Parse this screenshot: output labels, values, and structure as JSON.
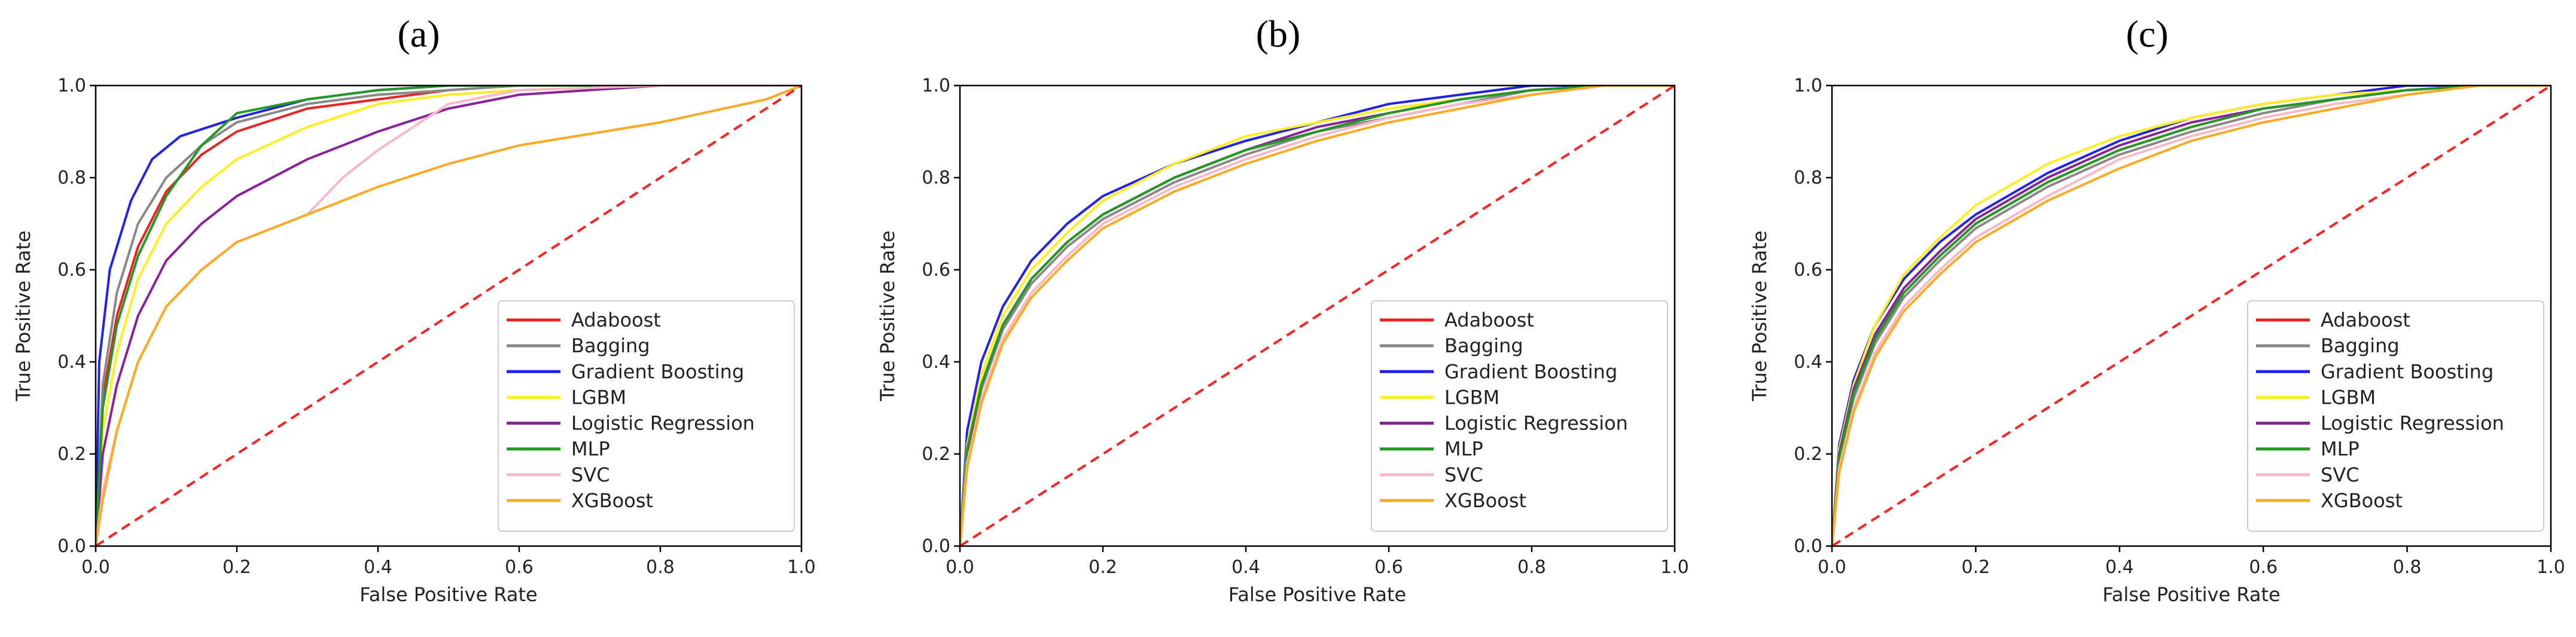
{
  "figure": {
    "panels": [
      "(a)",
      "(b)",
      "(c)"
    ]
  },
  "chart_data": [
    {
      "type": "line",
      "title": "(a)",
      "xlabel": "False Positive Rate",
      "ylabel": "True Positive Rate",
      "xlim": [
        0,
        1
      ],
      "ylim": [
        0,
        1
      ],
      "xticks": [
        "0.0",
        "0.2",
        "0.4",
        "0.6",
        "0.8",
        "1.0"
      ],
      "yticks": [
        "0.0",
        "0.2",
        "0.4",
        "0.6",
        "0.8",
        "1.0"
      ],
      "legend_position": "lower-right",
      "reference_line": {
        "name": "chance",
        "color": "#ff2222",
        "x": [
          0,
          1
        ],
        "y": [
          0,
          1
        ]
      },
      "series": [
        {
          "name": "Adaboost",
          "color": "#ee2222",
          "x": [
            0,
            0.01,
            0.03,
            0.06,
            0.1,
            0.15,
            0.2,
            0.3,
            0.4,
            0.5,
            0.6,
            0.8,
            1.0
          ],
          "y": [
            0,
            0.32,
            0.5,
            0.65,
            0.77,
            0.85,
            0.9,
            0.95,
            0.97,
            0.99,
            1.0,
            1.0,
            1.0
          ]
        },
        {
          "name": "Bagging",
          "color": "#888888",
          "x": [
            0,
            0.01,
            0.03,
            0.06,
            0.1,
            0.15,
            0.2,
            0.3,
            0.4,
            0.5,
            0.6,
            0.8,
            1.0
          ],
          "y": [
            0,
            0.35,
            0.55,
            0.7,
            0.8,
            0.87,
            0.92,
            0.96,
            0.98,
            0.99,
            1.0,
            1.0,
            1.0
          ]
        },
        {
          "name": "Gradient Boosting",
          "color": "#2222ee",
          "x": [
            0,
            0.005,
            0.02,
            0.05,
            0.08,
            0.12,
            0.2,
            0.3,
            0.4,
            0.5,
            0.6,
            0.8,
            1.0
          ],
          "y": [
            0,
            0.4,
            0.6,
            0.75,
            0.84,
            0.89,
            0.93,
            0.97,
            0.99,
            1.0,
            1.0,
            1.0,
            1.0
          ]
        },
        {
          "name": "LGBM",
          "color": "#ffee22",
          "x": [
            0,
            0.01,
            0.03,
            0.06,
            0.1,
            0.15,
            0.2,
            0.3,
            0.4,
            0.5,
            0.6,
            0.8,
            1.0
          ],
          "y": [
            0,
            0.25,
            0.42,
            0.58,
            0.7,
            0.78,
            0.84,
            0.91,
            0.96,
            0.98,
            0.99,
            1.0,
            1.0
          ]
        },
        {
          "name": "Logistic Regression",
          "color": "#882299",
          "x": [
            0,
            0.01,
            0.03,
            0.06,
            0.1,
            0.15,
            0.2,
            0.3,
            0.4,
            0.5,
            0.6,
            0.8,
            1.0
          ],
          "y": [
            0,
            0.2,
            0.35,
            0.5,
            0.62,
            0.7,
            0.76,
            0.84,
            0.9,
            0.95,
            0.98,
            1.0,
            1.0
          ]
        },
        {
          "name": "MLP",
          "color": "#229922",
          "x": [
            0,
            0.01,
            0.03,
            0.06,
            0.1,
            0.15,
            0.2,
            0.3,
            0.4,
            0.5,
            0.6,
            0.8,
            1.0
          ],
          "y": [
            0,
            0.3,
            0.48,
            0.63,
            0.76,
            0.87,
            0.94,
            0.97,
            0.99,
            1.0,
            1.0,
            1.0,
            1.0
          ]
        },
        {
          "name": "SVC",
          "color": "#f8b8c8",
          "x": [
            0,
            0.01,
            0.03,
            0.06,
            0.1,
            0.15,
            0.2,
            0.3,
            0.35,
            0.4,
            0.5,
            0.6,
            0.8,
            1.0
          ],
          "y": [
            0,
            0.12,
            0.25,
            0.4,
            0.52,
            0.6,
            0.66,
            0.72,
            0.8,
            0.86,
            0.96,
            0.99,
            1.0,
            1.0
          ]
        },
        {
          "name": "XGBoost",
          "color": "#ffaa22",
          "x": [
            0,
            0.01,
            0.03,
            0.06,
            0.1,
            0.15,
            0.2,
            0.3,
            0.4,
            0.5,
            0.6,
            0.8,
            0.95,
            1.0
          ],
          "y": [
            0,
            0.1,
            0.25,
            0.4,
            0.52,
            0.6,
            0.66,
            0.72,
            0.78,
            0.83,
            0.87,
            0.92,
            0.97,
            1.0
          ]
        }
      ]
    },
    {
      "type": "line",
      "title": "(b)",
      "xlabel": "False Positive Rate",
      "ylabel": "True Positive Rate",
      "xlim": [
        0,
        1
      ],
      "ylim": [
        0,
        1
      ],
      "xticks": [
        "0.0",
        "0.2",
        "0.4",
        "0.6",
        "0.8",
        "1.0"
      ],
      "yticks": [
        "0.0",
        "0.2",
        "0.4",
        "0.6",
        "0.8",
        "1.0"
      ],
      "legend_position": "lower-right",
      "reference_line": {
        "name": "chance",
        "color": "#ff2222",
        "x": [
          0,
          1
        ],
        "y": [
          0,
          1
        ]
      },
      "series": [
        {
          "name": "Adaboost",
          "color": "#ee2222",
          "x": [
            0,
            0.01,
            0.03,
            0.06,
            0.1,
            0.15,
            0.2,
            0.3,
            0.4,
            0.5,
            0.6,
            0.7,
            0.8,
            0.9,
            1.0
          ],
          "y": [
            0,
            0.22,
            0.35,
            0.48,
            0.58,
            0.66,
            0.72,
            0.8,
            0.86,
            0.9,
            0.94,
            0.97,
            0.99,
            1.0,
            1.0
          ]
        },
        {
          "name": "Bagging",
          "color": "#888888",
          "x": [
            0,
            0.01,
            0.03,
            0.06,
            0.1,
            0.15,
            0.2,
            0.3,
            0.4,
            0.5,
            0.6,
            0.7,
            0.8,
            0.9,
            1.0
          ],
          "y": [
            0,
            0.2,
            0.34,
            0.47,
            0.57,
            0.65,
            0.71,
            0.79,
            0.85,
            0.9,
            0.93,
            0.96,
            0.99,
            1.0,
            1.0
          ]
        },
        {
          "name": "Gradient Boosting",
          "color": "#2222ee",
          "x": [
            0,
            0.01,
            0.03,
            0.06,
            0.1,
            0.15,
            0.2,
            0.3,
            0.4,
            0.5,
            0.6,
            0.7,
            0.8,
            0.9,
            1.0
          ],
          "y": [
            0,
            0.25,
            0.4,
            0.52,
            0.62,
            0.7,
            0.76,
            0.83,
            0.88,
            0.92,
            0.96,
            0.98,
            1.0,
            1.0,
            1.0
          ]
        },
        {
          "name": "LGBM",
          "color": "#ffee22",
          "x": [
            0,
            0.01,
            0.03,
            0.06,
            0.1,
            0.15,
            0.2,
            0.3,
            0.4,
            0.5,
            0.6,
            0.7,
            0.8,
            0.9,
            1.0
          ],
          "y": [
            0,
            0.22,
            0.37,
            0.5,
            0.6,
            0.68,
            0.75,
            0.83,
            0.89,
            0.92,
            0.95,
            0.97,
            0.99,
            1.0,
            1.0
          ]
        },
        {
          "name": "Logistic Regression",
          "color": "#882299",
          "x": [
            0,
            0.01,
            0.03,
            0.06,
            0.1,
            0.15,
            0.2,
            0.3,
            0.4,
            0.5,
            0.6,
            0.7,
            0.8,
            0.9,
            1.0
          ],
          "y": [
            0,
            0.2,
            0.35,
            0.48,
            0.58,
            0.66,
            0.72,
            0.8,
            0.86,
            0.91,
            0.94,
            0.97,
            0.99,
            1.0,
            1.0
          ]
        },
        {
          "name": "MLP",
          "color": "#229922",
          "x": [
            0,
            0.01,
            0.03,
            0.06,
            0.1,
            0.15,
            0.2,
            0.3,
            0.4,
            0.5,
            0.6,
            0.7,
            0.8,
            0.9,
            1.0
          ],
          "y": [
            0,
            0.21,
            0.35,
            0.48,
            0.58,
            0.66,
            0.72,
            0.8,
            0.86,
            0.9,
            0.94,
            0.97,
            0.99,
            1.0,
            1.0
          ]
        },
        {
          "name": "SVC",
          "color": "#f8b8c8",
          "x": [
            0,
            0.01,
            0.03,
            0.06,
            0.1,
            0.15,
            0.2,
            0.3,
            0.4,
            0.5,
            0.6,
            0.7,
            0.8,
            0.9,
            1.0
          ],
          "y": [
            0,
            0.18,
            0.32,
            0.45,
            0.55,
            0.63,
            0.7,
            0.78,
            0.84,
            0.89,
            0.93,
            0.96,
            0.98,
            1.0,
            1.0
          ]
        },
        {
          "name": "XGBoost",
          "color": "#ffaa22",
          "x": [
            0,
            0.01,
            0.03,
            0.06,
            0.1,
            0.15,
            0.2,
            0.3,
            0.4,
            0.5,
            0.6,
            0.7,
            0.8,
            0.9,
            1.0
          ],
          "y": [
            0,
            0.17,
            0.31,
            0.44,
            0.54,
            0.62,
            0.69,
            0.77,
            0.83,
            0.88,
            0.92,
            0.95,
            0.98,
            1.0,
            1.0
          ]
        }
      ]
    },
    {
      "type": "line",
      "title": "(c)",
      "xlabel": "False Positive Rate",
      "ylabel": "True Positive Rate",
      "xlim": [
        0,
        1
      ],
      "ylim": [
        0,
        1
      ],
      "xticks": [
        "0.0",
        "0.2",
        "0.4",
        "0.6",
        "0.8",
        "1.0"
      ],
      "yticks": [
        "0.0",
        "0.2",
        "0.4",
        "0.6",
        "0.8",
        "1.0"
      ],
      "legend_position": "lower-right",
      "reference_line": {
        "name": "chance",
        "color": "#ff2222",
        "x": [
          0,
          1
        ],
        "y": [
          0,
          1
        ]
      },
      "series": [
        {
          "name": "Adaboost",
          "color": "#ee2222",
          "x": [
            0,
            0.01,
            0.03,
            0.06,
            0.1,
            0.15,
            0.2,
            0.3,
            0.4,
            0.5,
            0.6,
            0.7,
            0.8,
            0.9,
            1.0
          ],
          "y": [
            0,
            0.2,
            0.33,
            0.45,
            0.55,
            0.63,
            0.7,
            0.79,
            0.86,
            0.91,
            0.95,
            0.97,
            0.99,
            1.0,
            1.0
          ]
        },
        {
          "name": "Bagging",
          "color": "#888888",
          "x": [
            0,
            0.01,
            0.03,
            0.06,
            0.1,
            0.15,
            0.2,
            0.3,
            0.4,
            0.5,
            0.6,
            0.7,
            0.8,
            0.9,
            1.0
          ],
          "y": [
            0,
            0.19,
            0.32,
            0.44,
            0.54,
            0.62,
            0.69,
            0.78,
            0.85,
            0.9,
            0.94,
            0.97,
            0.99,
            1.0,
            1.0
          ]
        },
        {
          "name": "Gradient Boosting",
          "color": "#2222ee",
          "x": [
            0,
            0.01,
            0.03,
            0.06,
            0.1,
            0.15,
            0.2,
            0.3,
            0.4,
            0.5,
            0.6,
            0.7,
            0.8,
            0.9,
            1.0
          ],
          "y": [
            0,
            0.22,
            0.36,
            0.48,
            0.58,
            0.66,
            0.72,
            0.81,
            0.88,
            0.93,
            0.96,
            0.98,
            1.0,
            1.0,
            1.0
          ]
        },
        {
          "name": "LGBM",
          "color": "#ffee22",
          "x": [
            0,
            0.01,
            0.03,
            0.06,
            0.1,
            0.15,
            0.2,
            0.3,
            0.4,
            0.5,
            0.6,
            0.7,
            0.8,
            0.9,
            1.0
          ],
          "y": [
            0,
            0.21,
            0.35,
            0.48,
            0.59,
            0.67,
            0.74,
            0.83,
            0.89,
            0.93,
            0.96,
            0.98,
            0.99,
            1.0,
            1.0
          ]
        },
        {
          "name": "Logistic Regression",
          "color": "#882299",
          "x": [
            0,
            0.01,
            0.03,
            0.06,
            0.1,
            0.15,
            0.2,
            0.3,
            0.4,
            0.5,
            0.6,
            0.7,
            0.8,
            0.9,
            1.0
          ],
          "y": [
            0,
            0.2,
            0.34,
            0.46,
            0.56,
            0.64,
            0.71,
            0.8,
            0.87,
            0.92,
            0.95,
            0.97,
            0.99,
            1.0,
            1.0
          ]
        },
        {
          "name": "MLP",
          "color": "#229922",
          "x": [
            0,
            0.01,
            0.03,
            0.06,
            0.1,
            0.15,
            0.2,
            0.3,
            0.4,
            0.5,
            0.6,
            0.7,
            0.8,
            0.9,
            1.0
          ],
          "y": [
            0,
            0.19,
            0.33,
            0.45,
            0.55,
            0.63,
            0.7,
            0.79,
            0.86,
            0.91,
            0.95,
            0.97,
            0.99,
            1.0,
            1.0
          ]
        },
        {
          "name": "SVC",
          "color": "#f8b8c8",
          "x": [
            0,
            0.01,
            0.03,
            0.06,
            0.1,
            0.15,
            0.2,
            0.3,
            0.4,
            0.5,
            0.6,
            0.7,
            0.8,
            0.9,
            1.0
          ],
          "y": [
            0,
            0.17,
            0.3,
            0.42,
            0.52,
            0.6,
            0.67,
            0.76,
            0.84,
            0.89,
            0.93,
            0.96,
            0.98,
            1.0,
            1.0
          ]
        },
        {
          "name": "XGBoost",
          "color": "#ffaa22",
          "x": [
            0,
            0.01,
            0.03,
            0.06,
            0.1,
            0.15,
            0.2,
            0.3,
            0.4,
            0.5,
            0.6,
            0.7,
            0.8,
            0.9,
            1.0
          ],
          "y": [
            0,
            0.16,
            0.29,
            0.41,
            0.51,
            0.59,
            0.66,
            0.75,
            0.82,
            0.88,
            0.92,
            0.95,
            0.98,
            1.0,
            1.0
          ]
        }
      ]
    }
  ]
}
